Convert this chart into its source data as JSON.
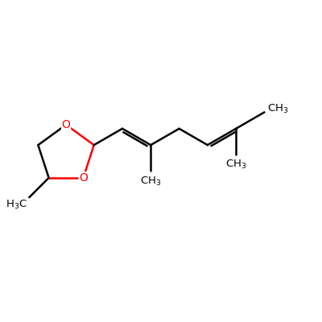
{
  "background_color": "#ffffff",
  "bond_color": "#000000",
  "oxygen_color": "#ff0000",
  "bond_width": 1.8,
  "figsize": [
    4.0,
    4.0
  ],
  "dpi": 100,
  "font_size": 10,
  "font_size_label": 9.5,
  "xlim": [
    0.05,
    0.95
  ],
  "ylim": [
    0.15,
    0.85
  ]
}
